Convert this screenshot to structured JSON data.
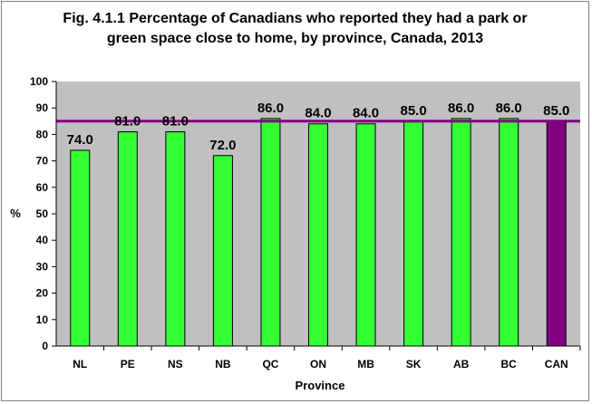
{
  "title_lines": [
    "Fig. 4.1.1 Percentage of Canadians who reported they had a park or",
    "green space close to home, by province, Canada, 2013"
  ],
  "chart_data": {
    "type": "bar",
    "title": "Fig. 4.1.1 Percentage of Canadians who reported they had a park or green space close to home, by province, Canada, 2013",
    "xlabel": "Province",
    "ylabel": "%",
    "ylim": [
      0,
      100
    ],
    "yticks": [
      0,
      10,
      20,
      30,
      40,
      50,
      60,
      70,
      80,
      90,
      100
    ],
    "categories": [
      "NL",
      "PE",
      "NS",
      "NB",
      "QC",
      "ON",
      "MB",
      "SK",
      "AB",
      "BC",
      "CAN"
    ],
    "values": [
      74,
      81,
      81,
      72,
      86,
      84,
      84,
      85,
      86,
      86,
      85
    ],
    "data_labels": [
      "74.0",
      "81.0",
      "81.0",
      "72.0",
      "86.0",
      "84.0",
      "84.0",
      "85.0",
      "86.0",
      "86.0",
      "85.0"
    ],
    "reference_line": 85,
    "grid": false,
    "legend": "none",
    "colors": {
      "province_bar": "#33ff33",
      "canada_bar": "#800080",
      "reference_line": "#800080",
      "plot_background": "#c0c0c0"
    }
  }
}
